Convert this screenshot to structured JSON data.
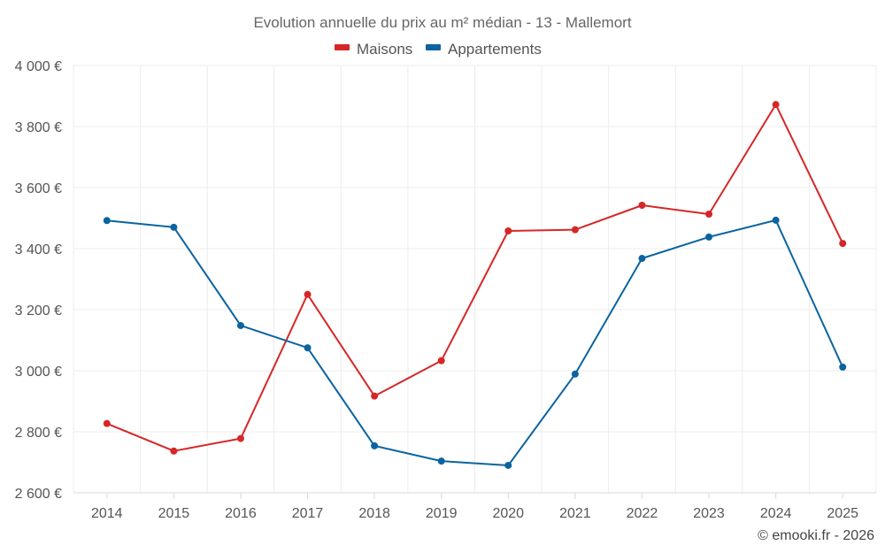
{
  "chart_data": {
    "type": "line",
    "title": "Evolution annuelle du prix au m² médian - 13 - Mallemort",
    "categories": [
      "2014",
      "2015",
      "2016",
      "2017",
      "2018",
      "2019",
      "2020",
      "2021",
      "2022",
      "2023",
      "2024",
      "2025"
    ],
    "series": [
      {
        "name": "Maisons",
        "color": "#d62728",
        "values": [
          2827,
          2737,
          2778,
          3250,
          2917,
          3033,
          3458,
          3462,
          3542,
          3513,
          3872,
          3417
        ]
      },
      {
        "name": "Appartements",
        "color": "#0b64a0",
        "values": [
          3492,
          3470,
          3148,
          3075,
          2754,
          2704,
          2690,
          2989,
          3368,
          3438,
          3493,
          3012
        ]
      }
    ],
    "y_ticks": [
      "2 600 €",
      "2 800 €",
      "3 000 €",
      "3 200 €",
      "3 400 €",
      "3 600 €",
      "3 800 €",
      "4 000 €"
    ],
    "ylim": [
      2600,
      4000
    ],
    "y_step": 200,
    "xlabel": "",
    "ylabel": "",
    "grid": true,
    "legend_position": "top-center"
  },
  "footer": {
    "copyright": "© emooki.fr - 2026"
  }
}
